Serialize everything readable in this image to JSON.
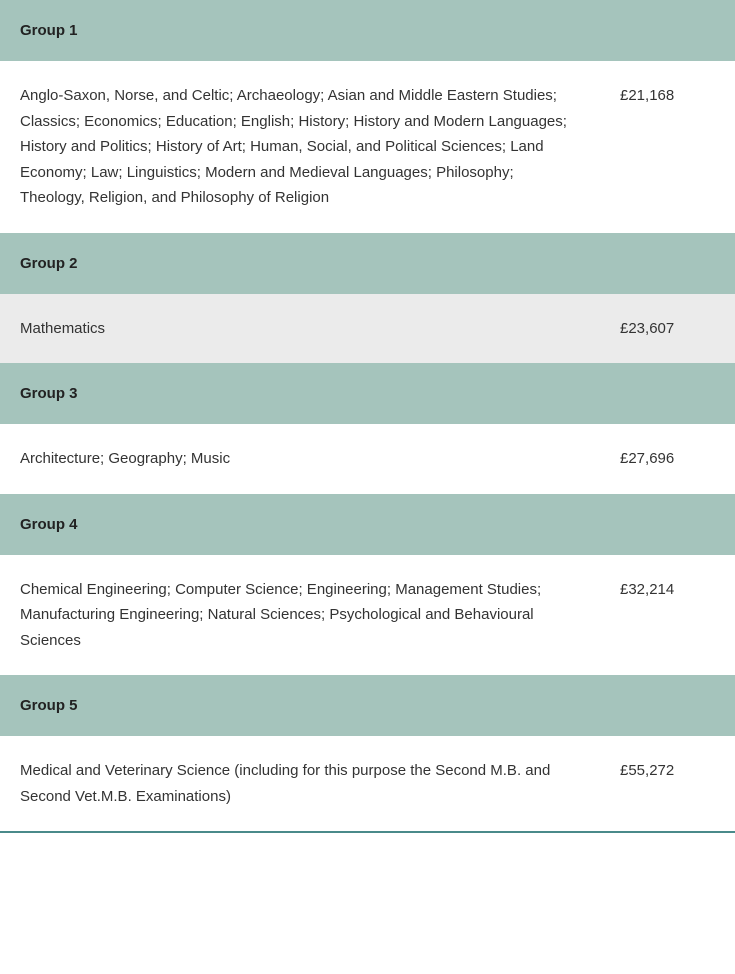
{
  "table": {
    "header_bg_color": "#a5c4bc",
    "alt_row_bg_color": "#ebebeb",
    "text_color": "#333333",
    "border_bottom_color": "#4a8a8a",
    "groups": [
      {
        "name": "Group 1",
        "description": "Anglo-Saxon, Norse, and Celtic; Archaeology; Asian and Middle Eastern Studies; Classics; Economics; Education; English; History; History and Modern Languages; History and Politics; History of Art; Human, Social, and Political Sciences; Land Economy; Law; Linguistics; Modern and Medieval Languages; Philosophy; Theology, Religion, and Philosophy of Religion",
        "price": "£21,168",
        "alt_row": false
      },
      {
        "name": "Group 2",
        "description": "Mathematics",
        "price": "£23,607",
        "alt_row": true
      },
      {
        "name": "Group 3",
        "description": "Architecture; Geography; Music",
        "price": "£27,696",
        "alt_row": false
      },
      {
        "name": "Group 4",
        "description": "Chemical Engineering; Computer Science; Engineering; Management Studies; Manufacturing Engineering; Natural Sciences; Psychological and Behavioural Sciences",
        "price": "£32,214",
        "alt_row": false
      },
      {
        "name": "Group 5",
        "description": "Medical and Veterinary Science (including for this purpose the Second M.B. and Second Vet.M.B. Examinations)",
        "price": "£55,272",
        "alt_row": false
      }
    ]
  }
}
